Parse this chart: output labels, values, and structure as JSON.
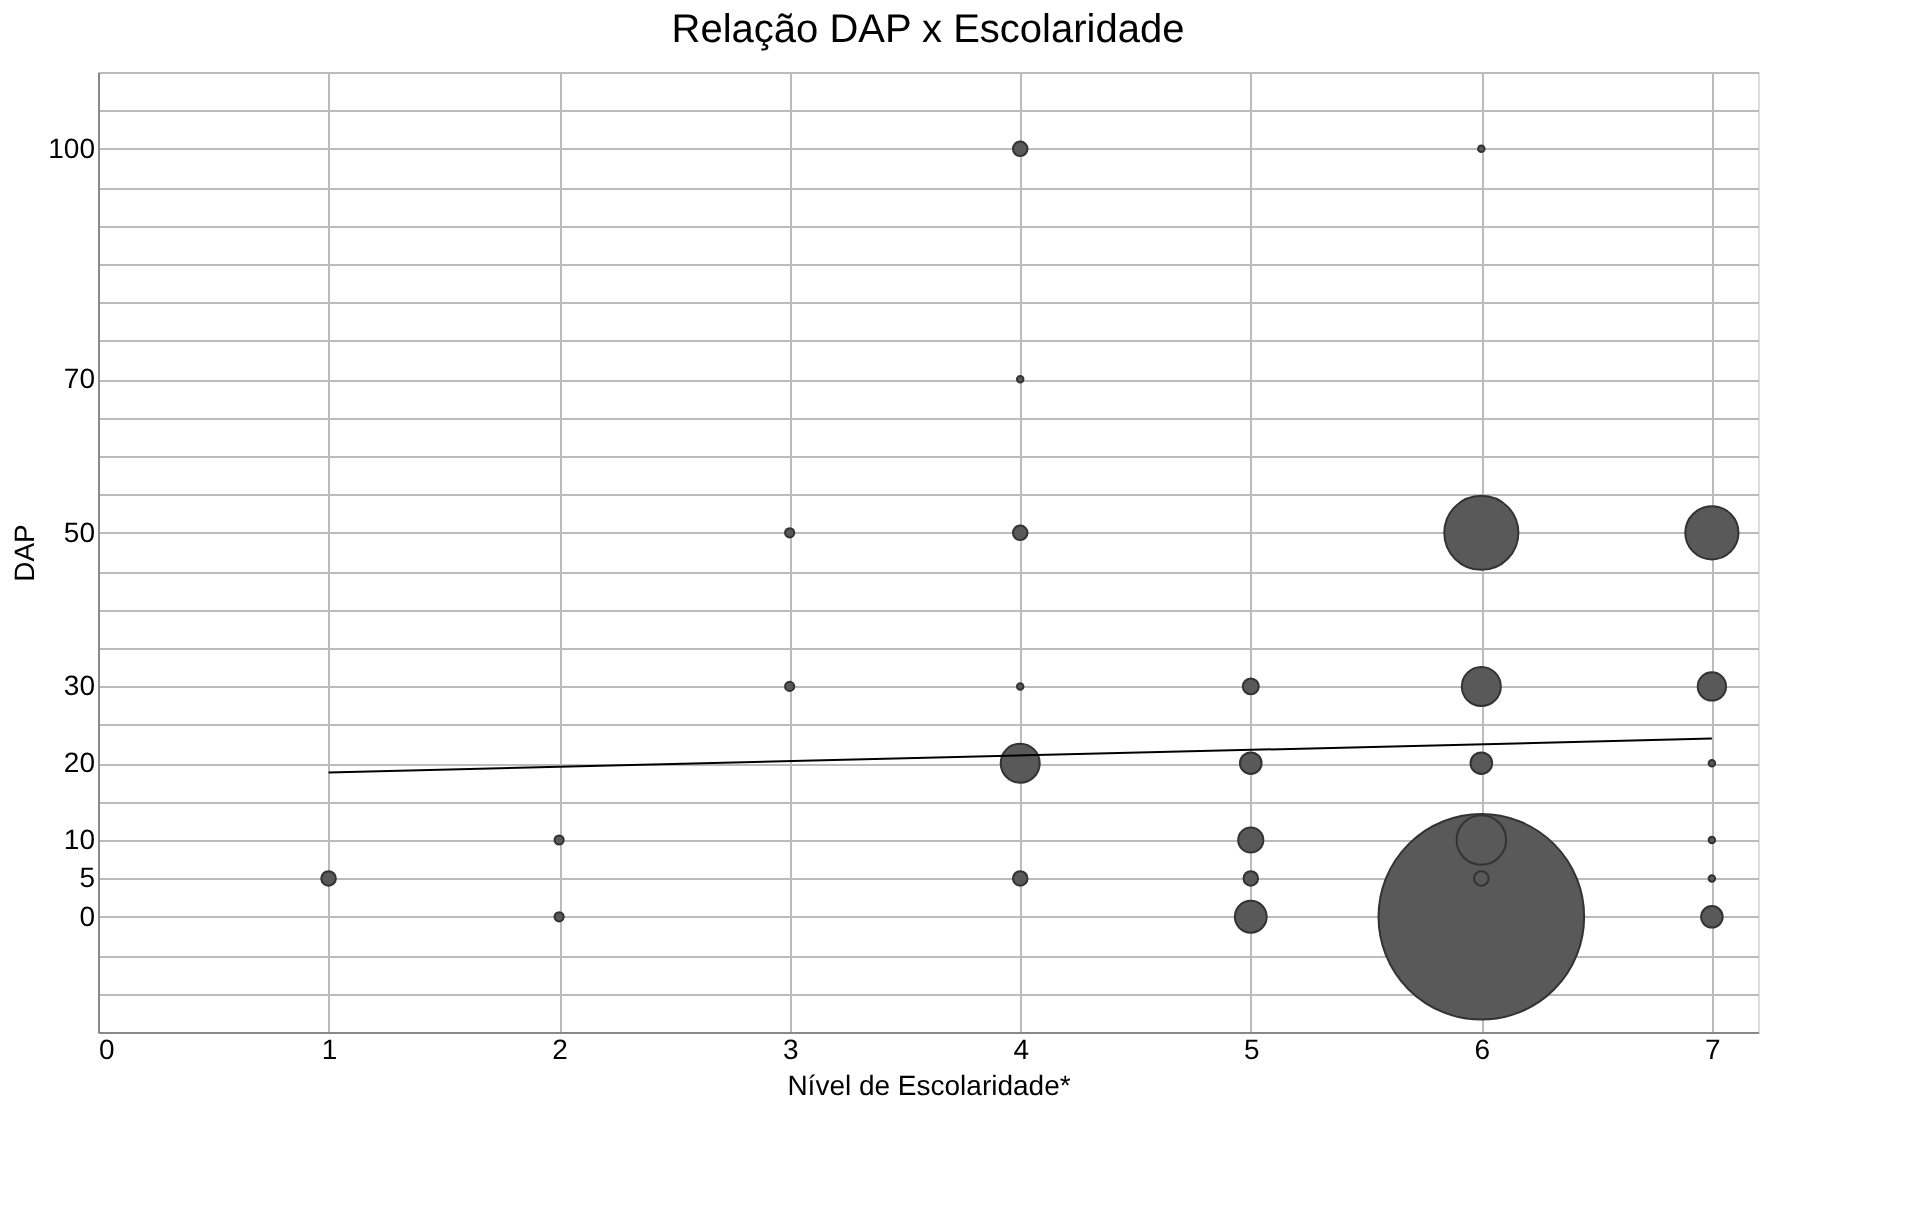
{
  "chart_data": {
    "type": "bubble",
    "title": "Relação DAP x Escolaridade",
    "xlabel": "Nível de Escolaridade*",
    "ylabel": "DAP",
    "xlim": [
      0,
      7.2
    ],
    "xticks": [
      0,
      1,
      2,
      3,
      4,
      5,
      6,
      7
    ],
    "ylim": [
      -15,
      110
    ],
    "yticks": [
      {
        "value": -15,
        "label": null
      },
      {
        "value": -10,
        "label": null
      },
      {
        "value": -5,
        "label": null
      },
      0,
      5,
      10,
      {
        "value": 15,
        "label": null
      },
      20,
      {
        "value": 25,
        "label": null
      },
      30,
      {
        "value": 35,
        "label": null
      },
      {
        "value": 40,
        "label": null
      },
      {
        "value": 45,
        "label": null
      },
      50,
      {
        "value": 55,
        "label": null
      },
      {
        "value": 60,
        "label": null
      },
      {
        "value": 65,
        "label": null
      },
      70,
      {
        "value": 75,
        "label": null
      },
      {
        "value": 80,
        "label": null
      },
      {
        "value": 85,
        "label": null
      },
      {
        "value": 90,
        "label": null
      },
      {
        "value": 95,
        "label": null
      },
      100,
      {
        "value": 105,
        "label": null
      },
      {
        "value": 110,
        "label": null
      }
    ],
    "grid": true,
    "legend": false,
    "series": [
      {
        "color": "#595959",
        "x": [
          1,
          2,
          2,
          3,
          3,
          4,
          4,
          4,
          4,
          4,
          4,
          5,
          5,
          5,
          5,
          5,
          6,
          6,
          6,
          6,
          6,
          6,
          6,
          7,
          7,
          7,
          7,
          7,
          7
        ],
        "values": [
          5,
          10,
          0,
          50,
          30,
          100,
          70,
          50,
          30,
          20,
          5,
          30,
          20,
          10,
          5,
          0,
          100,
          50,
          30,
          20,
          10,
          5,
          0,
          50,
          30,
          20,
          10,
          5,
          0
        ],
        "sizes": [
          0.005,
          0.002,
          0.002,
          0.002,
          0.002,
          0.005,
          0.001,
          0.005,
          0.001,
          0.036,
          0.005,
          0.006,
          0.011,
          0.015,
          0.005,
          0.024,
          0.001,
          0.13,
          0.036,
          0.011,
          0.058,
          0.005,
          1,
          0.067,
          0.019,
          0.001,
          0.001,
          0.001,
          0.011
        ]
      },
      {
        "type": "line",
        "color": "#000000",
        "x": [
          1,
          7
        ],
        "values": [
          18.8,
          23.2
        ]
      }
    ]
  }
}
